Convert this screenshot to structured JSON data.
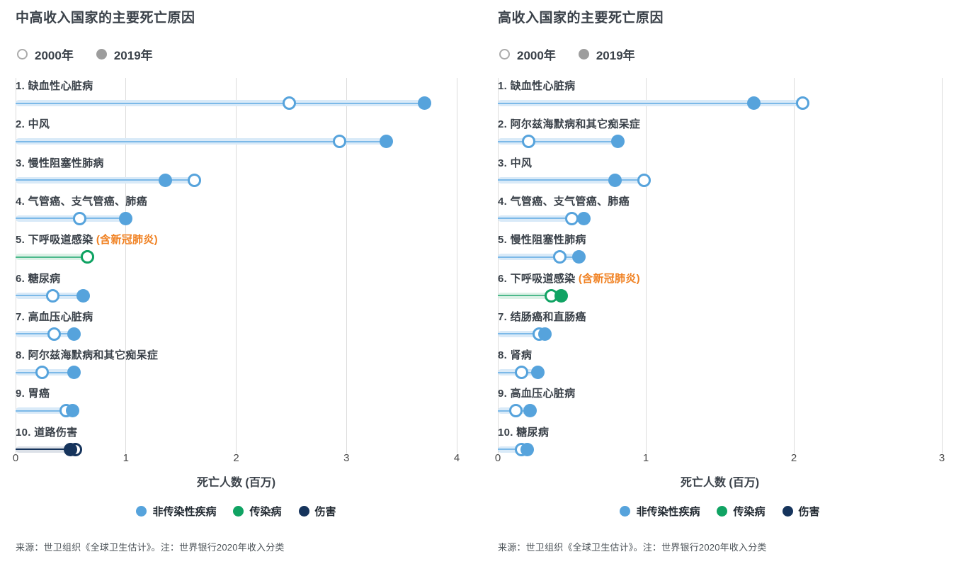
{
  "page": {
    "background": "#ffffff"
  },
  "year_legend": {
    "y2000": "2000年",
    "y2019": "2019年"
  },
  "category_legend": [
    {
      "key": "ncd",
      "label": "非传染性疾病"
    },
    {
      "key": "cd",
      "label": "传染病"
    },
    {
      "key": "injury",
      "label": "伤害"
    }
  ],
  "source_note": "来源：世卫组织《全球卫生估计》。注：世界银行2020年收入分类",
  "colors": {
    "ncd": {
      "main": "#56a3dc",
      "line": "#7cb9e8",
      "band": "#d9eaf8"
    },
    "cd": {
      "main": "#10a363",
      "line": "#4cb98b",
      "band": "#dcf1e6"
    },
    "injury": {
      "main": "#16345c",
      "line": "#16345c",
      "band": "#dce1e8"
    },
    "legend_open_ring": "#ababab",
    "legend_filled": "#9d9d9d",
    "highlight_orange": "#f08122",
    "gridline": "#dcdcdc",
    "title_text": "#3a4149",
    "tick_text": "#4a4a4a",
    "source_text": "#4c5358"
  },
  "chart_data": [
    {
      "type": "dumbbell",
      "title": "中高收入国家的主要死亡原因",
      "xlabel": "死亡人数 (百万)",
      "xlim": [
        0,
        4
      ],
      "xticks": [
        0,
        1,
        2,
        3,
        4
      ],
      "legend": [
        "2000年",
        "2019年"
      ],
      "legend_position": "top-left",
      "grid": true,
      "rows": [
        {
          "rank": 1,
          "label": "缺血性心脏病",
          "category": "ncd",
          "v2000": 2.48,
          "v2019": 3.71
        },
        {
          "rank": 2,
          "label": "中风",
          "category": "ncd",
          "v2000": 2.94,
          "v2019": 3.36
        },
        {
          "rank": 3,
          "label": "慢性阻塞性肺病",
          "category": "ncd",
          "v2000": 1.62,
          "v2019": 1.36
        },
        {
          "rank": 4,
          "label": "气管癌、支气管癌、肺癌",
          "category": "ncd",
          "v2000": 0.58,
          "v2019": 1.0
        },
        {
          "rank": 5,
          "label": "下呼吸道感染",
          "suffix": "(含新冠肺炎)",
          "category": "cd",
          "v2000": 0.65,
          "v2019": 0.65,
          "open_on_top": true
        },
        {
          "rank": 6,
          "label": "糖尿病",
          "category": "ncd",
          "v2000": 0.34,
          "v2019": 0.61
        },
        {
          "rank": 7,
          "label": "高血压心脏病",
          "category": "ncd",
          "v2000": 0.35,
          "v2019": 0.53
        },
        {
          "rank": 8,
          "label": "阿尔兹海默病和其它痴呆症",
          "category": "ncd",
          "v2000": 0.24,
          "v2019": 0.53
        },
        {
          "rank": 9,
          "label": "胃癌",
          "category": "ncd",
          "v2000": 0.46,
          "v2019": 0.52
        },
        {
          "rank": 10,
          "label": "道路伤害",
          "category": "injury",
          "v2000": 0.54,
          "v2019": 0.5
        }
      ]
    },
    {
      "type": "dumbbell",
      "title": "高收入国家的主要死亡原因",
      "xlabel": "死亡人数 (百万)",
      "xlim": [
        0,
        3
      ],
      "xticks": [
        0,
        1,
        2,
        3
      ],
      "legend": [
        "2000年",
        "2019年"
      ],
      "legend_position": "top-left",
      "grid": true,
      "rows": [
        {
          "rank": 1,
          "label": "缺血性心脏病",
          "category": "ncd",
          "v2000": 2.06,
          "v2019": 1.73
        },
        {
          "rank": 2,
          "label": "阿尔兹海默病和其它痴呆症",
          "category": "ncd",
          "v2000": 0.21,
          "v2019": 0.81
        },
        {
          "rank": 3,
          "label": "中风",
          "category": "ncd",
          "v2000": 0.99,
          "v2019": 0.79
        },
        {
          "rank": 4,
          "label": "气管癌、支气管癌、肺癌",
          "category": "ncd",
          "v2000": 0.5,
          "v2019": 0.58
        },
        {
          "rank": 5,
          "label": "慢性阻塞性肺病",
          "category": "ncd",
          "v2000": 0.42,
          "v2019": 0.55
        },
        {
          "rank": 6,
          "label": "下呼吸道感染",
          "suffix": "(含新冠肺炎)",
          "category": "cd",
          "v2000": 0.36,
          "v2019": 0.43
        },
        {
          "rank": 7,
          "label": "结肠癌和直肠癌",
          "category": "ncd",
          "v2000": 0.28,
          "v2019": 0.32
        },
        {
          "rank": 8,
          "label": "肾病",
          "category": "ncd",
          "v2000": 0.16,
          "v2019": 0.27
        },
        {
          "rank": 9,
          "label": "高血压心脏病",
          "category": "ncd",
          "v2000": 0.12,
          "v2019": 0.22
        },
        {
          "rank": 10,
          "label": "糖尿病",
          "category": "ncd",
          "v2000": 0.16,
          "v2019": 0.2
        }
      ]
    }
  ]
}
